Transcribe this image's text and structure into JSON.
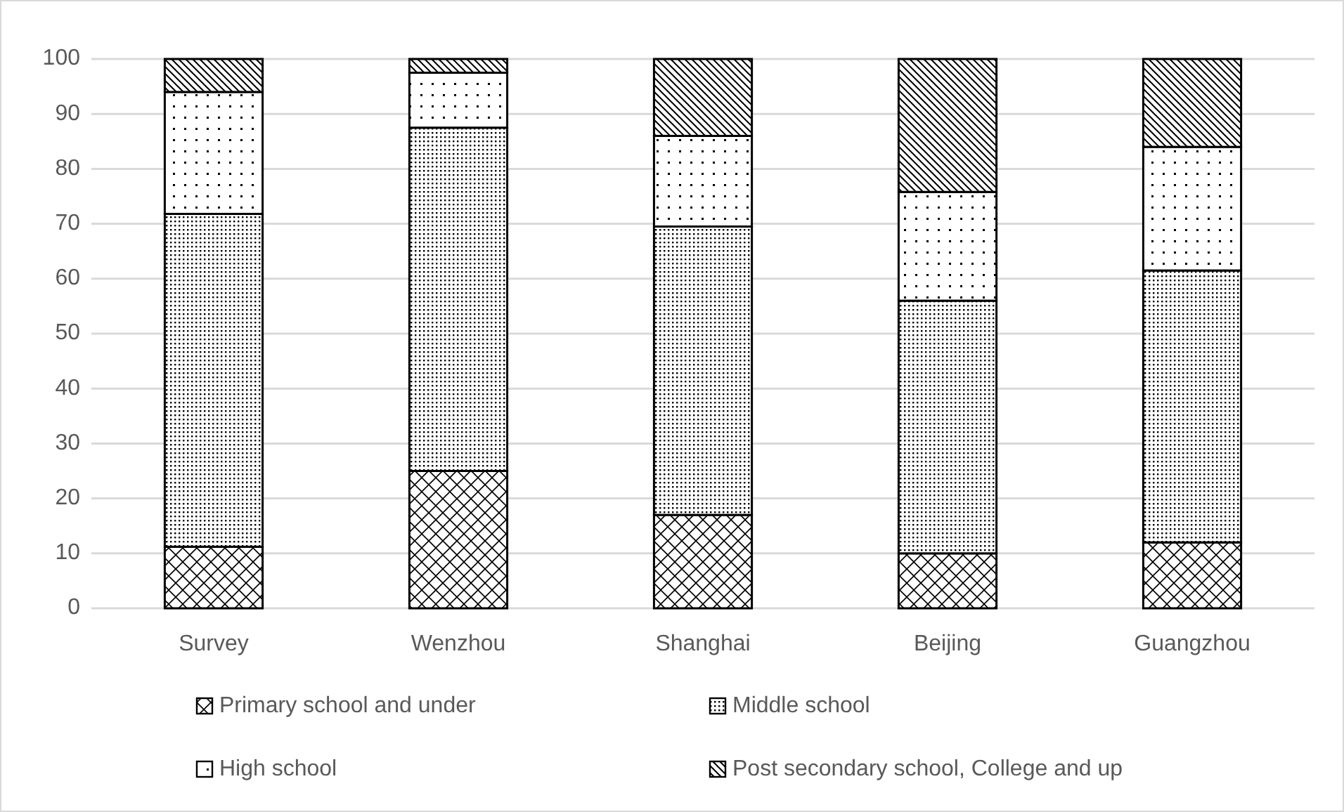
{
  "chart_data": {
    "type": "bar",
    "stacked": true,
    "categories": [
      "Survey",
      "Wenzhou",
      "Shanghai",
      "Beijing",
      "Guangzhou"
    ],
    "series": [
      {
        "name": "Primary school and under",
        "color": "#000000",
        "values": [
          11.2,
          25,
          17,
          10,
          12
        ]
      },
      {
        "name": "Middle school",
        "color": "#000000",
        "values": [
          60.6,
          62.5,
          52.5,
          46,
          49.5
        ]
      },
      {
        "name": "High school",
        "color": "#000000",
        "values": [
          22.2,
          10,
          16.5,
          19.8,
          22.5
        ]
      },
      {
        "name": "Post secondary school, College and up",
        "color": "#000000",
        "values": [
          6,
          2.5,
          14,
          24.2,
          16
        ]
      }
    ],
    "ylim": [
      0,
      100
    ],
    "yticks": [
      0,
      10,
      20,
      30,
      40,
      50,
      60,
      70,
      80,
      90,
      100
    ],
    "grid": "y",
    "legend": "bottom"
  }
}
